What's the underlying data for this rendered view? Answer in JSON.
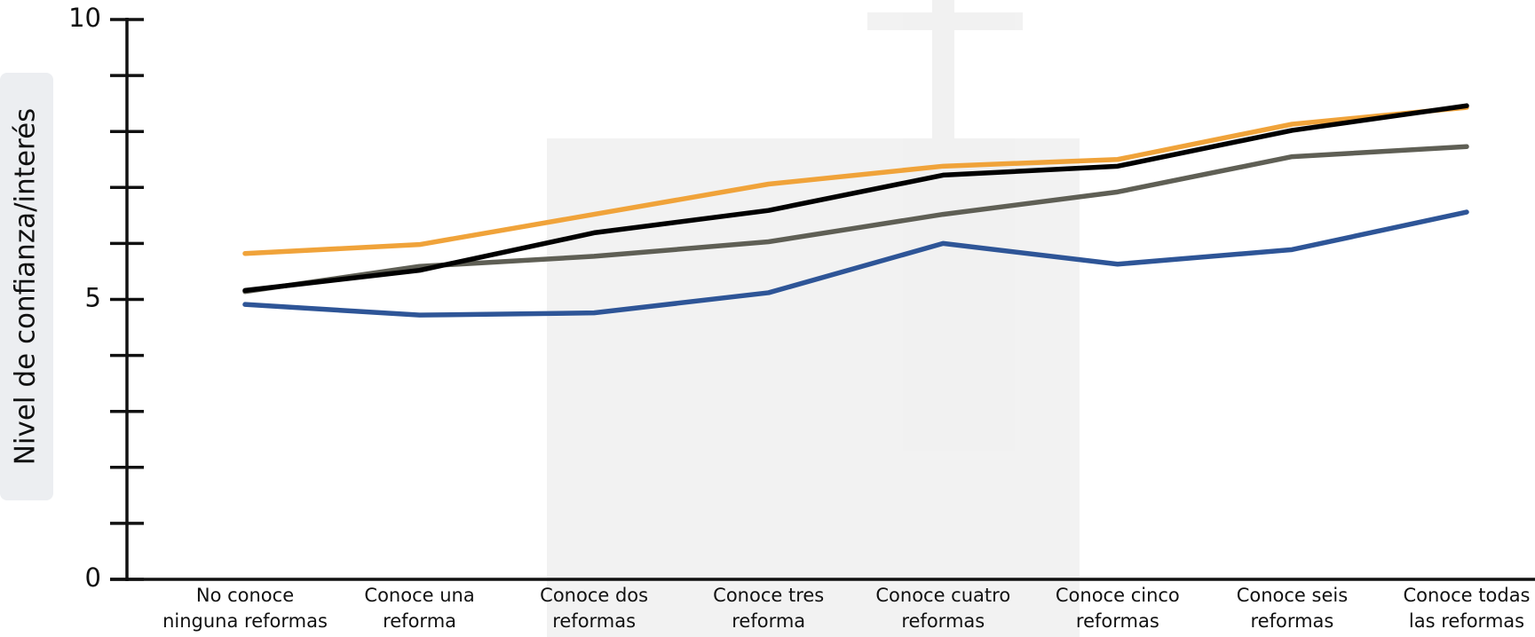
{
  "chart_data": {
    "type": "line",
    "y_label": "Nivel de confianza/interés",
    "categories": [
      "No conoce\nninguna reformas",
      "Conoce una\nreforma",
      "Conoce dos\nreformas",
      "Conoce tres\nreforma",
      "Conoce cuatro\nreformas",
      "Conoce cinco\nreformas",
      "Conoce seis\nreformas",
      "Conoce todas\nlas reformas"
    ],
    "series": [
      {
        "color": "#f0a33a",
        "values": [
          5.82,
          5.98,
          6.52,
          7.06,
          7.38,
          7.5,
          8.13,
          8.43
        ]
      },
      {
        "color": "#5f5f55",
        "values": [
          5.14,
          5.59,
          5.77,
          6.03,
          6.52,
          6.92,
          7.55,
          7.73
        ]
      },
      {
        "color": "#2e5597",
        "values": [
          4.91,
          4.72,
          4.76,
          5.12,
          6.0,
          5.63,
          5.89,
          6.56
        ]
      },
      {
        "color": "#000000",
        "values": [
          5.16,
          5.52,
          6.19,
          6.59,
          7.22,
          7.38,
          8.02,
          8.46
        ]
      }
    ],
    "ylim": [
      0,
      10
    ],
    "yticks": [
      0,
      5,
      10
    ],
    "minor_yticks": [
      1,
      2,
      3,
      4,
      6,
      7,
      8,
      9
    ]
  }
}
